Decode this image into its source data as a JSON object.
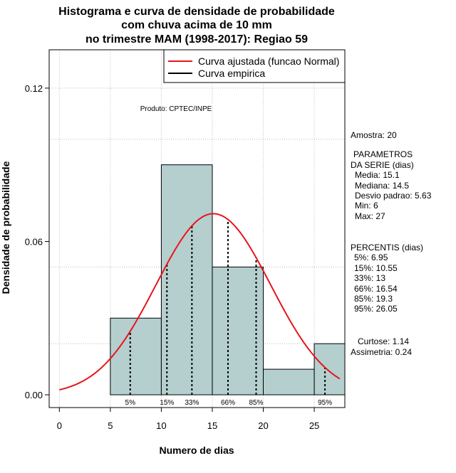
{
  "chart_data": {
    "type": "histogram",
    "title_lines": [
      "Histograma e curva de densidade de probabilidade",
      "com chuva acima de 10 mm",
      "no trimestre MAM (1998-2017): Regiao 59"
    ],
    "xlabel": "Numero de dias",
    "ylabel": "Densidade de probabilidade",
    "xlim": [
      -1,
      28
    ],
    "ylim": [
      -0.005,
      0.135
    ],
    "x_ticks": [
      0,
      5,
      10,
      15,
      20,
      25
    ],
    "y_ticks": [
      {
        "value": 0.0,
        "label": "0.00"
      },
      {
        "value": 0.06,
        "label": "0.06"
      },
      {
        "value": 0.12,
        "label": "0.12"
      }
    ],
    "grid_x": [
      0,
      5,
      10,
      15,
      20,
      25
    ],
    "grid_y": [
      0.02,
      0.05,
      0.1,
      0.12
    ],
    "bins": [
      {
        "start": 5,
        "end": 10,
        "density": 0.03
      },
      {
        "start": 10,
        "end": 15,
        "density": 0.09
      },
      {
        "start": 15,
        "end": 20,
        "density": 0.05
      },
      {
        "start": 20,
        "end": 25,
        "density": 0.01
      },
      {
        "start": 25,
        "end": 28,
        "density": 0.02
      }
    ],
    "normal_fit": {
      "mean": 15.1,
      "sd": 5.63,
      "x_from": 0,
      "x_to": 27.5
    },
    "percentiles": [
      {
        "label": "5%",
        "value": 6.95
      },
      {
        "label": "15%",
        "value": 10.55
      },
      {
        "label": "33%",
        "value": 13
      },
      {
        "label": "66%",
        "value": 16.54
      },
      {
        "label": "85%",
        "value": 19.3
      },
      {
        "label": "95%",
        "value": 26.05
      }
    ],
    "legend": [
      {
        "label": "Curva ajustada (funcao Normal)",
        "color": "#e8141b"
      },
      {
        "label": "Curva empirica",
        "color": "#000000"
      }
    ],
    "annotation": "Produto: CPTEC/INPE",
    "colors": {
      "bar_fill": "#b5cfcf",
      "curve": "#e8141b",
      "grid": "#bbbbbb"
    }
  },
  "stats": {
    "amostra": "Amostra: 20",
    "parametros_title": "PARAMETROS",
    "da_serie": "DA SERIE (dias)",
    "media": "Media: 15.1",
    "mediana": "Mediana: 14.5",
    "desvio": "Desvio padrao: 5.63",
    "min": "Min: 6",
    "max": "Max: 27",
    "percentis_title": "PERCENTIS (dias)",
    "p5": "5%: 6.95",
    "p15": "15%: 10.55",
    "p33": "33%: 13",
    "p66": "66%: 16.54",
    "p85": "85%: 19.3",
    "p95": "95%: 26.05",
    "curtose": "Curtose: 1.14",
    "assimetria": "Assimetria: 0.24"
  }
}
